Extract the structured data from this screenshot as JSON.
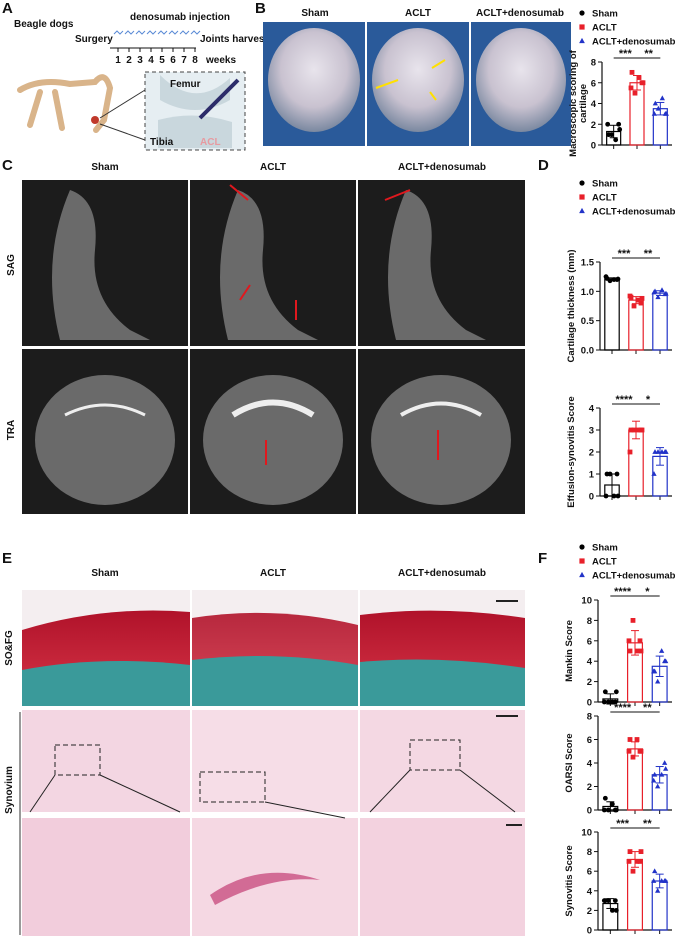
{
  "figure": {
    "panel_labels": [
      "A",
      "B",
      "C",
      "D",
      "E",
      "F"
    ],
    "panel_a": {
      "title": "Beagle dogs",
      "injection": "denosumab injection",
      "surgery": "Surgery",
      "harvest": "Joints harvest",
      "weeks": [
        1,
        2,
        3,
        4,
        5,
        6,
        7,
        8
      ],
      "weeks_unit": "weeks",
      "femur": "Femur",
      "tibia": "Tibia",
      "acl": "ACL"
    },
    "columns": [
      "Sham",
      "ACLT",
      "ACLT+denosumab"
    ],
    "panel_c_rows": [
      "SAG",
      "TRA"
    ],
    "panel_e_rows": [
      "SO&FG",
      "Synovium"
    ]
  },
  "groups": [
    {
      "name": "Sham",
      "color": "#000000",
      "marker": "circle"
    },
    {
      "name": "ACLT",
      "color": "#e8202a",
      "marker": "square"
    },
    {
      "name": "ACLT+denosumab",
      "color": "#2233c8",
      "marker": "triangle"
    }
  ],
  "chart_data": [
    {
      "type": "dotplot",
      "ylabel": [
        "Macroscopic scoring of",
        "cartilage"
      ],
      "ylim": [
        0,
        8
      ],
      "yticks": [
        0,
        2,
        4,
        6,
        8
      ],
      "significance": [
        "***",
        "**"
      ],
      "series": [
        {
          "values": [
            1,
            2,
            1,
            0.5,
            2,
            1.5
          ],
          "mean": 1.3,
          "error": 0.6
        },
        {
          "values": [
            7,
            6,
            5,
            6.5,
            5.5,
            6
          ],
          "mean": 6,
          "error": 0.7
        },
        {
          "values": [
            4,
            3,
            3.5,
            4.5,
            3,
            3
          ],
          "mean": 3.5,
          "error": 0.6
        }
      ]
    },
    {
      "type": "dotplot",
      "ylabel": "Cartilage thickness (mm)",
      "ylim": [
        0,
        1.5
      ],
      "yticks": [
        {
          "value": 0,
          "label": "0.0"
        },
        {
          "value": 0.5,
          "label": "0.5"
        },
        {
          "value": 1,
          "label": "1.0"
        },
        {
          "value": 1.5,
          "label": "1.5"
        }
      ],
      "significance": [
        "***",
        "**"
      ],
      "series": [
        {
          "values": [
            1.22,
            1.2,
            1.18,
            1.2,
            1.25,
            1.21
          ],
          "mean": 1.21,
          "error": 0.02
        },
        {
          "values": [
            0.9,
            0.8,
            0.75,
            0.85,
            0.92,
            0.88
          ],
          "mean": 0.85,
          "error": 0.06
        },
        {
          "values": [
            1,
            0.95,
            0.9,
            1.02,
            0.98,
            0.96
          ],
          "mean": 0.97,
          "error": 0.04
        }
      ]
    },
    {
      "type": "dotplot",
      "ylabel": "Effusion-synovitis Score",
      "ylim": [
        0,
        4
      ],
      "yticks": [
        0,
        1,
        2,
        3,
        4
      ],
      "significance": [
        "****",
        "*"
      ],
      "series": [
        {
          "values": [
            1,
            1,
            1,
            0,
            0,
            0
          ],
          "mean": 0.5,
          "error": 0.5
        },
        {
          "values": [
            3,
            3,
            3,
            3,
            2,
            3
          ],
          "mean": 3,
          "error": 0.4
        },
        {
          "values": [
            2,
            2,
            2,
            2,
            1,
            2
          ],
          "mean": 1.8,
          "error": 0.4
        }
      ]
    },
    {
      "type": "dotplot",
      "ylabel": "Mankin Score",
      "ylim": [
        0,
        10
      ],
      "yticks": [
        0,
        2,
        4,
        6,
        8,
        10
      ],
      "significance": [
        "****",
        "*"
      ],
      "series": [
        {
          "values": [
            1,
            0,
            0,
            0,
            0,
            1
          ],
          "mean": 0.3,
          "error": 0.5
        },
        {
          "values": [
            5,
            6,
            8,
            5,
            6,
            5
          ],
          "mean": 5.8,
          "error": 1.2
        },
        {
          "values": [
            3,
            4,
            2,
            5,
            3,
            4
          ],
          "mean": 3.5,
          "error": 1
        }
      ]
    },
    {
      "type": "dotplot",
      "ylabel": "OARSI Score",
      "ylim": [
        0,
        8
      ],
      "yticks": [
        0,
        2,
        4,
        6,
        8
      ],
      "significance": [
        "****",
        "**"
      ],
      "series": [
        {
          "values": [
            1,
            0,
            0,
            0.5,
            0,
            0
          ],
          "mean": 0.3,
          "error": 0.4
        },
        {
          "values": [
            6,
            5,
            4.5,
            6,
            5,
            5
          ],
          "mean": 5.2,
          "error": 0.6
        },
        {
          "values": [
            3,
            4,
            2,
            3,
            2.5,
            3.5
          ],
          "mean": 3,
          "error": 0.7
        }
      ]
    },
    {
      "type": "dotplot",
      "ylabel": "Synovitis Score",
      "ylim": [
        0,
        10
      ],
      "yticks": [
        0,
        2,
        4,
        6,
        8,
        10
      ],
      "significance": [
        "***",
        "**"
      ],
      "series": [
        {
          "values": [
            3,
            3,
            3,
            2,
            3,
            2
          ],
          "mean": 2.7,
          "error": 0.5
        },
        {
          "values": [
            8,
            7,
            6,
            7,
            7,
            8
          ],
          "mean": 7.2,
          "error": 0.8
        },
        {
          "values": [
            6,
            5,
            4,
            5,
            5,
            5
          ],
          "mean": 5,
          "error": 0.7
        }
      ]
    }
  ]
}
